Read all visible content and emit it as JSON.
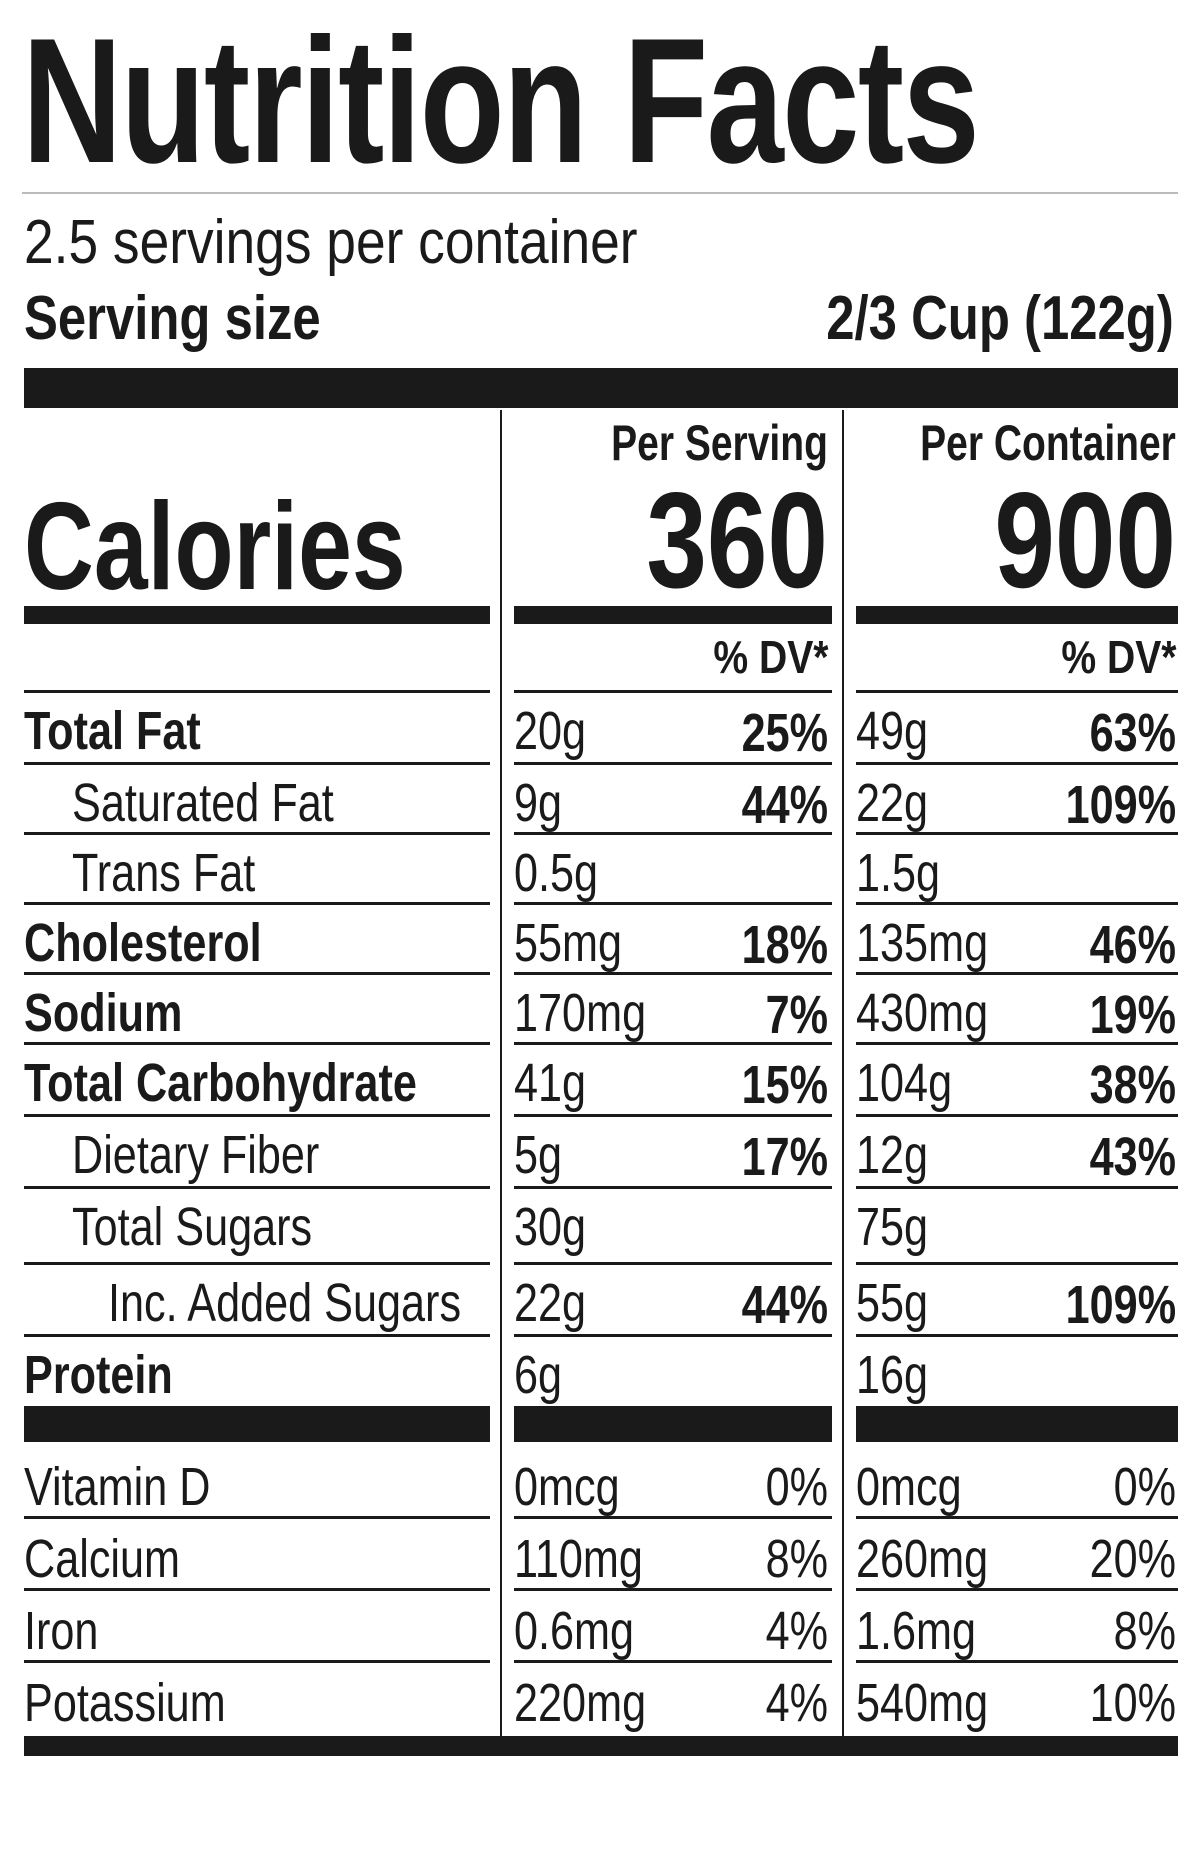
{
  "title": "Nutrition Facts",
  "servings_per_container": "2.5 servings per container",
  "serving_size": {
    "label": "Serving size",
    "value": "2/3 Cup (122g)"
  },
  "calories": {
    "label": "Calories",
    "per_serving_label": "Per Serving",
    "per_serving_value": "360",
    "per_container_label": "Per Container",
    "per_container_value": "900"
  },
  "dv_header": "% DV*",
  "nutrients": [
    {
      "name": "Total Fat",
      "bold": true,
      "indent": 0,
      "serving_amount": "20g",
      "serving_dv": "25%",
      "container_amount": "49g",
      "container_dv": "63%"
    },
    {
      "name": "Saturated Fat",
      "bold": false,
      "indent": 1,
      "serving_amount": "9g",
      "serving_dv": "44%",
      "container_amount": "22g",
      "container_dv": "109%"
    },
    {
      "name": "Trans Fat",
      "bold": false,
      "indent": 1,
      "serving_amount": "0.5g",
      "serving_dv": "",
      "container_amount": "1.5g",
      "container_dv": ""
    },
    {
      "name": "Cholesterol",
      "bold": true,
      "indent": 0,
      "serving_amount": "55mg",
      "serving_dv": "18%",
      "container_amount": "135mg",
      "container_dv": "46%"
    },
    {
      "name": "Sodium",
      "bold": true,
      "indent": 0,
      "serving_amount": "170mg",
      "serving_dv": "7%",
      "container_amount": "430mg",
      "container_dv": "19%"
    },
    {
      "name": "Total Carbohydrate",
      "bold": true,
      "indent": 0,
      "serving_amount": "41g",
      "serving_dv": "15%",
      "container_amount": "104g",
      "container_dv": "38%"
    },
    {
      "name": "Dietary Fiber",
      "bold": false,
      "indent": 1,
      "serving_amount": "5g",
      "serving_dv": "17%",
      "container_amount": "12g",
      "container_dv": "43%"
    },
    {
      "name": "Total Sugars",
      "bold": false,
      "indent": 1,
      "serving_amount": "30g",
      "serving_dv": "",
      "container_amount": "75g",
      "container_dv": ""
    },
    {
      "name": "Inc. Added Sugars",
      "bold": false,
      "indent": 2,
      "serving_amount": "22g",
      "serving_dv": "44%",
      "container_amount": "55g",
      "container_dv": "109%"
    },
    {
      "name": "Protein",
      "bold": true,
      "indent": 0,
      "serving_amount": "6g",
      "serving_dv": "",
      "container_amount": "16g",
      "container_dv": ""
    }
  ],
  "vitamins": [
    {
      "name": "Vitamin D",
      "serving_amount": "0mcg",
      "serving_dv": "0%",
      "container_amount": "0mcg",
      "container_dv": "0%"
    },
    {
      "name": "Calcium",
      "serving_amount": "110mg",
      "serving_dv": "8%",
      "container_amount": "260mg",
      "container_dv": "20%"
    },
    {
      "name": "Iron",
      "serving_amount": "0.6mg",
      "serving_dv": "4%",
      "container_amount": "1.6mg",
      "container_dv": "8%"
    },
    {
      "name": "Potassium",
      "serving_amount": "220mg",
      "serving_dv": "4%",
      "container_amount": "540mg",
      "container_dv": "10%"
    }
  ]
}
